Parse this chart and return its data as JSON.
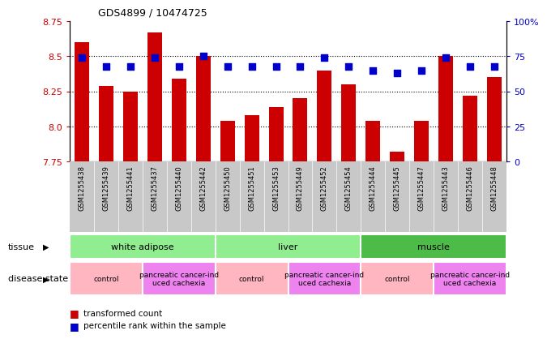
{
  "title": "GDS4899 / 10474725",
  "samples": [
    "GSM1255438",
    "GSM1255439",
    "GSM1255441",
    "GSM1255437",
    "GSM1255440",
    "GSM1255442",
    "GSM1255450",
    "GSM1255451",
    "GSM1255453",
    "GSM1255449",
    "GSM1255452",
    "GSM1255454",
    "GSM1255444",
    "GSM1255445",
    "GSM1255447",
    "GSM1255443",
    "GSM1255446",
    "GSM1255448"
  ],
  "bar_values": [
    8.6,
    8.29,
    8.25,
    8.67,
    8.34,
    8.5,
    8.04,
    8.08,
    8.14,
    8.2,
    8.4,
    8.3,
    8.04,
    7.82,
    8.04,
    8.5,
    8.22,
    8.35
  ],
  "dot_values": [
    74,
    68,
    68,
    74,
    68,
    75,
    68,
    68,
    68,
    68,
    74,
    68,
    65,
    63,
    65,
    74,
    68,
    68
  ],
  "ylim_left": [
    7.75,
    8.75
  ],
  "ylim_right": [
    0,
    100
  ],
  "yticks_left": [
    7.75,
    8.0,
    8.25,
    8.5,
    8.75
  ],
  "yticks_right": [
    0,
    25,
    50,
    75,
    100
  ],
  "bar_color": "#CC0000",
  "dot_color": "#0000CC",
  "dot_size": 35,
  "tissue_groups": [
    {
      "label": "white adipose",
      "start": 0,
      "end": 6,
      "color": "#90EE90"
    },
    {
      "label": "liver",
      "start": 6,
      "end": 12,
      "color": "#90EE90"
    },
    {
      "label": "muscle",
      "start": 12,
      "end": 18,
      "color": "#4CBB47"
    }
  ],
  "disease_groups": [
    {
      "label": "control",
      "start": 0,
      "end": 3,
      "color": "#FFB6C1"
    },
    {
      "label": "pancreatic cancer-ind\nuced cachexia",
      "start": 3,
      "end": 6,
      "color": "#FF69B4"
    },
    {
      "label": "control",
      "start": 6,
      "end": 9,
      "color": "#FFB6C1"
    },
    {
      "label": "pancreatic cancer-ind\nuced cachexia",
      "start": 9,
      "end": 12,
      "color": "#FF69B4"
    },
    {
      "label": "control",
      "start": 12,
      "end": 15,
      "color": "#FFB6C1"
    },
    {
      "label": "pancreatic cancer-ind\nuced cachexia",
      "start": 15,
      "end": 18,
      "color": "#FF69B4"
    }
  ],
  "grid_yticks": [
    8.0,
    8.25,
    8.5
  ],
  "sample_bg_color": "#C8C8C8",
  "white_adipose_color": "#90EE90",
  "liver_color": "#90EE90",
  "muscle_color": "#4CBB47",
  "control_color": "#FFB6C1",
  "cachexia_color": "#EE82EE"
}
